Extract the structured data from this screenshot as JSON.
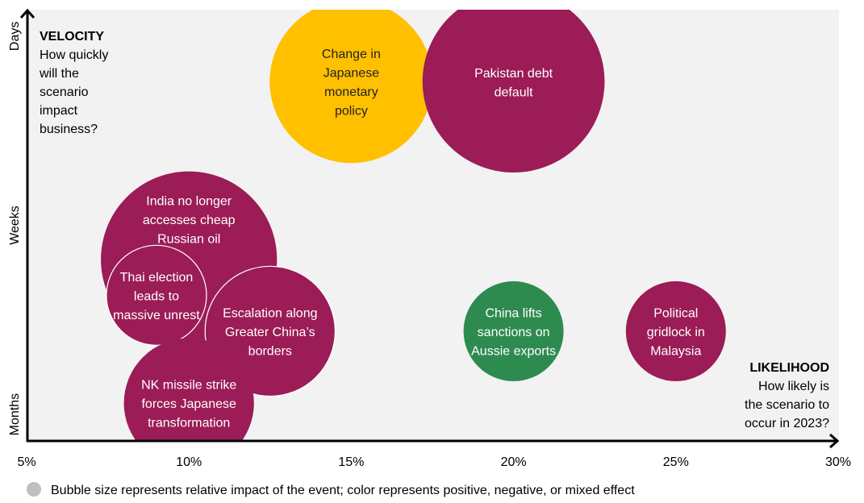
{
  "chart_data": {
    "type": "bubble",
    "xlim": [
      5,
      30
    ],
    "x_ticks": [
      "5%",
      "10%",
      "15%",
      "20%",
      "25%",
      "30%"
    ],
    "x_tick_values": [
      5,
      10,
      15,
      20,
      25,
      30
    ],
    "y_categories": [
      "Months",
      "Weeks",
      "Days"
    ],
    "y_category_values": [
      1,
      2,
      3
    ],
    "ylim": [
      0.86,
      3.14
    ],
    "grid": false,
    "background": "#f2f2f2",
    "y_annotation": {
      "title": "VELOCITY",
      "lines": [
        "How quickly",
        "will the",
        "scenario",
        "impact",
        "business?"
      ]
    },
    "x_annotation": {
      "title": "LIKELIHOOD",
      "lines": [
        "How likely is",
        "the scenario to",
        "occur in 2023?"
      ]
    },
    "colors": {
      "negative": "#9b1c56",
      "mixed": "#ffc000",
      "positive": "#2e8b50"
    },
    "points": [
      {
        "label": [
          "Change in",
          "Japanese",
          "monetary",
          "policy"
        ],
        "x": 15,
        "y": 2.76,
        "size": 1.63,
        "effect": "mixed"
      },
      {
        "label": [
          "Pakistan debt",
          "default"
        ],
        "x": 20,
        "y": 2.76,
        "size": 1.82,
        "effect": "negative"
      },
      {
        "label": [
          "India no longer",
          "accesses cheap",
          "Russian oil"
        ],
        "x": 10,
        "y": 1.82,
        "size": 1.76,
        "effect": "negative"
      },
      {
        "label": [
          "Thai election",
          "leads to",
          "massive unrest"
        ],
        "x": 9,
        "y": 1.63,
        "size": 1.0,
        "effect": "negative",
        "outline": true
      },
      {
        "label": [
          "Escalation along",
          "Greater China’s",
          "borders"
        ],
        "x": 12.5,
        "y": 1.44,
        "size": 1.3,
        "effect": "negative",
        "outline": true
      },
      {
        "label": [
          "China lifts",
          "sanctions on",
          "Aussie exports"
        ],
        "x": 20,
        "y": 1.44,
        "size": 1.0,
        "effect": "positive"
      },
      {
        "label": [
          "Political",
          "gridlock in",
          "Malaysia"
        ],
        "x": 25,
        "y": 1.44,
        "size": 1.0,
        "effect": "negative"
      },
      {
        "label": [
          "NK missile strike",
          "forces Japanese",
          "transformation"
        ],
        "x": 10,
        "y": 1.06,
        "size": 1.3,
        "effect": "negative"
      }
    ]
  },
  "legend": {
    "text": "Bubble size represents relative impact of the event; color represents positive, negative, or mixed effect",
    "color": "#bfbfbf"
  }
}
